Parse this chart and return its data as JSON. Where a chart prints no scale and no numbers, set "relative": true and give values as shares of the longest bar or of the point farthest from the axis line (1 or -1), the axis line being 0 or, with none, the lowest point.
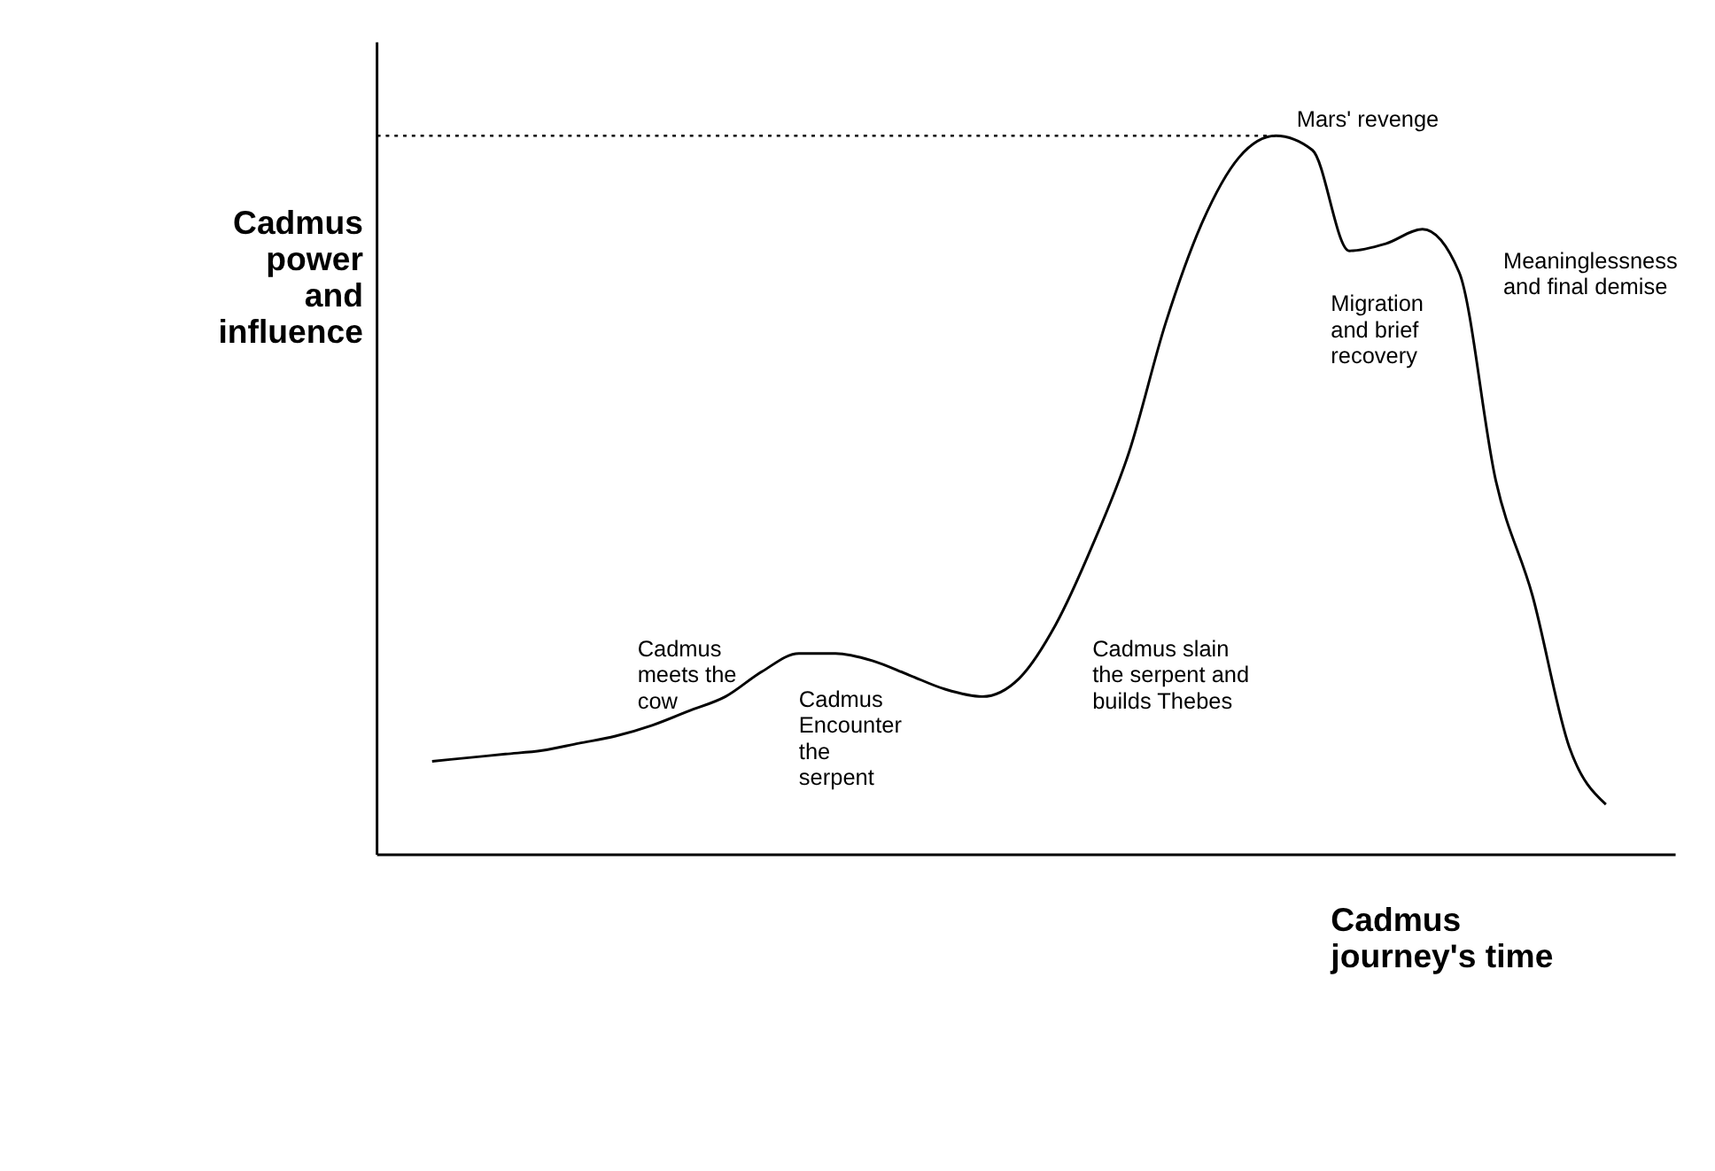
{
  "chart_data": {
    "type": "line",
    "relative": true,
    "xlabel": "Cadmus journey's time",
    "ylabel": "Cadmus power and influence",
    "categories": [
      null,
      null,
      null,
      null,
      null,
      null,
      null,
      null,
      null,
      null,
      null,
      null,
      null,
      null,
      null,
      null,
      null,
      null,
      null,
      null,
      null,
      null,
      null,
      null,
      null,
      null,
      null,
      null,
      null,
      null,
      null,
      null,
      null
    ],
    "series": [
      {
        "color": "#000000",
        "values": [
          0.13,
          0.135,
          0.14,
          0.145,
          0.155,
          0.165,
          0.18,
          0.2,
          0.22,
          0.255,
          0.28,
          0.28,
          0.27,
          0.25,
          0.23,
          0.22,
          0.245,
          0.32,
          0.43,
          0.56,
          0.74,
          0.88,
          0.97,
          1.0,
          0.98,
          0.84,
          0.85,
          0.87,
          0.81,
          0.52,
          0.36,
          0.15,
          0.07
        ]
      }
    ],
    "ref_lines": [
      {
        "axis": "y",
        "value": 1.0,
        "label": "Mars' revenge",
        "line_style": "dotted",
        "color": "#000000"
      }
    ],
    "annotations": [
      "Cadmus\nmeets the\ncow",
      "Cadmus\nEncounter\nthe\nserpent",
      "Cadmus slain\nthe serpent and\nbuilds Thebes",
      "Migration\nand brief\nrecovery",
      "Meaninglessness\nand final demise"
    ],
    "marker": "none",
    "line_style": "solid"
  }
}
